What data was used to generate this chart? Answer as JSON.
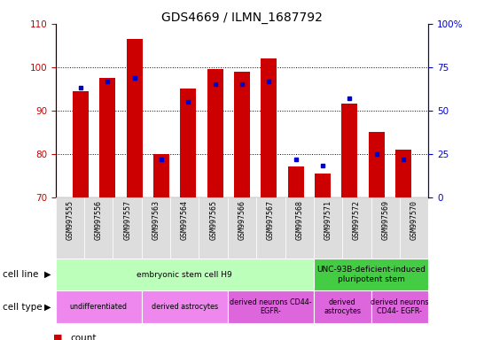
{
  "title": "GDS4669 / ILMN_1687792",
  "samples": [
    "GSM997555",
    "GSM997556",
    "GSM997557",
    "GSM997563",
    "GSM997564",
    "GSM997565",
    "GSM997566",
    "GSM997567",
    "GSM997568",
    "GSM997571",
    "GSM997572",
    "GSM997569",
    "GSM997570"
  ],
  "count_values": [
    94.5,
    97.5,
    106.5,
    80.0,
    95.0,
    99.5,
    99.0,
    102.0,
    77.0,
    75.5,
    91.5,
    85.0,
    81.0
  ],
  "percentile_values": [
    63,
    67,
    69,
    22,
    55,
    65,
    65,
    67,
    22,
    18,
    57,
    25,
    22
  ],
  "ylim_left": [
    70,
    110
  ],
  "ylim_right": [
    0,
    100
  ],
  "yticks_left": [
    70,
    80,
    90,
    100,
    110
  ],
  "yticks_right": [
    0,
    25,
    50,
    75,
    100
  ],
  "bar_color": "#cc0000",
  "dot_color": "#0000cc",
  "grid_color": "black",
  "cell_line_groups": [
    {
      "label": "embryonic stem cell H9",
      "start": 0,
      "end": 9,
      "color": "#bbffbb"
    },
    {
      "label": "UNC-93B-deficient-induced\npluripotent stem",
      "start": 9,
      "end": 13,
      "color": "#44cc44"
    }
  ],
  "cell_type_groups": [
    {
      "label": "undifferentiated",
      "start": 0,
      "end": 3,
      "color": "#ee88ee"
    },
    {
      "label": "derived astrocytes",
      "start": 3,
      "end": 6,
      "color": "#ee88ee"
    },
    {
      "label": "derived neurons CD44-\nEGFR-",
      "start": 6,
      "end": 9,
      "color": "#dd66dd"
    },
    {
      "label": "derived\nastrocytes",
      "start": 9,
      "end": 11,
      "color": "#dd66dd"
    },
    {
      "label": "derived neurons\nCD44- EGFR-",
      "start": 11,
      "end": 13,
      "color": "#dd66dd"
    }
  ],
  "legend_count_color": "#cc0000",
  "legend_percentile_color": "#0000cc",
  "left_axis_color": "#cc0000",
  "right_axis_color": "#0000cc",
  "background_color": "#ffffff",
  "xtick_bg_color": "#dddddd"
}
